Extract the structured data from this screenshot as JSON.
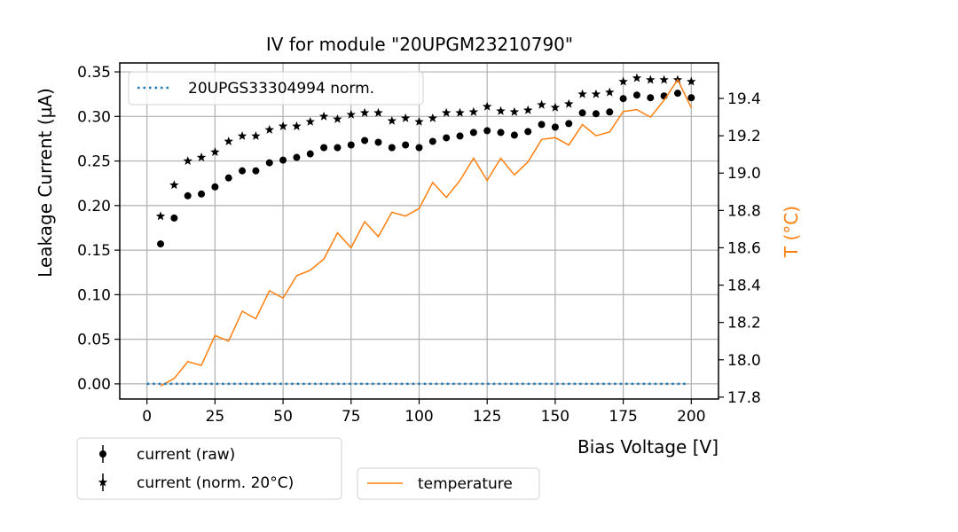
{
  "chart_data": {
    "type": "scatter",
    "title": "IV for module \"20UPGM23210790\"",
    "xlabel": "Bias Voltage [V]",
    "ylabel": "Leakage Current (µA)",
    "y2label": "T (°C)",
    "xlim": [
      -10,
      210
    ],
    "ylim": [
      -0.017,
      0.36
    ],
    "y2lim": [
      17.79,
      19.59
    ],
    "xticks": [
      0,
      25,
      50,
      75,
      100,
      125,
      150,
      175,
      200
    ],
    "yticks": [
      "0.00",
      "0.05",
      "0.10",
      "0.15",
      "0.20",
      "0.25",
      "0.30",
      "0.35"
    ],
    "y2ticks": [
      "17.8",
      "18.0",
      "18.2",
      "18.4",
      "18.6",
      "18.8",
      "19.0",
      "19.2",
      "19.4"
    ],
    "grid": true,
    "x": [
      5,
      10,
      15,
      20,
      25,
      30,
      35,
      40,
      45,
      50,
      55,
      60,
      65,
      70,
      75,
      80,
      85,
      90,
      95,
      100,
      105,
      110,
      115,
      120,
      125,
      130,
      135,
      140,
      145,
      150,
      155,
      160,
      165,
      170,
      175,
      180,
      185,
      190,
      195,
      200
    ],
    "series": [
      {
        "name": "current (raw)",
        "axis": "left",
        "marker": "circle",
        "color": "#000000",
        "values": [
          0.157,
          0.186,
          0.211,
          0.213,
          0.221,
          0.231,
          0.239,
          0.239,
          0.248,
          0.251,
          0.254,
          0.258,
          0.265,
          0.265,
          0.268,
          0.273,
          0.271,
          0.265,
          0.268,
          0.265,
          0.272,
          0.276,
          0.278,
          0.282,
          0.284,
          0.282,
          0.279,
          0.283,
          0.291,
          0.288,
          0.292,
          0.304,
          0.303,
          0.305,
          0.32,
          0.324,
          0.321,
          0.323,
          0.326,
          0.321
        ]
      },
      {
        "name": "current (norm. 20°C)",
        "axis": "left",
        "marker": "star",
        "color": "#000000",
        "values": [
          0.188,
          0.223,
          0.25,
          0.254,
          0.26,
          0.272,
          0.278,
          0.278,
          0.285,
          0.289,
          0.289,
          0.294,
          0.3,
          0.297,
          0.302,
          0.304,
          0.304,
          0.295,
          0.298,
          0.294,
          0.298,
          0.304,
          0.304,
          0.305,
          0.311,
          0.306,
          0.305,
          0.307,
          0.313,
          0.31,
          0.314,
          0.325,
          0.325,
          0.327,
          0.339,
          0.343,
          0.341,
          0.341,
          0.341,
          0.339
        ]
      },
      {
        "name": "temperature",
        "axis": "right",
        "marker": "line",
        "color": "#ff7f0e",
        "values": [
          17.86,
          17.9,
          17.99,
          17.97,
          18.13,
          18.1,
          18.26,
          18.22,
          18.37,
          18.33,
          18.45,
          18.48,
          18.54,
          18.68,
          18.6,
          18.74,
          18.66,
          18.79,
          18.77,
          18.81,
          18.95,
          18.87,
          18.96,
          19.08,
          18.96,
          19.08,
          18.99,
          19.06,
          19.18,
          19.19,
          19.15,
          19.26,
          19.2,
          19.22,
          19.33,
          19.34,
          19.3,
          19.39,
          19.5,
          19.35
        ]
      },
      {
        "name": "20UPGS33304994 norm.",
        "axis": "left",
        "marker": "dotted-line",
        "color": "#1f77b4",
        "x": [
          0,
          198
        ],
        "values": [
          0.0,
          0.0
        ]
      }
    ],
    "legends": [
      {
        "placement": "top-left",
        "entries": [
          "20UPGS33304994 norm."
        ]
      },
      {
        "placement": "below-left",
        "entries": [
          "current (raw)",
          "current (norm. 20°C)"
        ]
      },
      {
        "placement": "below-center",
        "entries": [
          "temperature"
        ]
      }
    ]
  }
}
